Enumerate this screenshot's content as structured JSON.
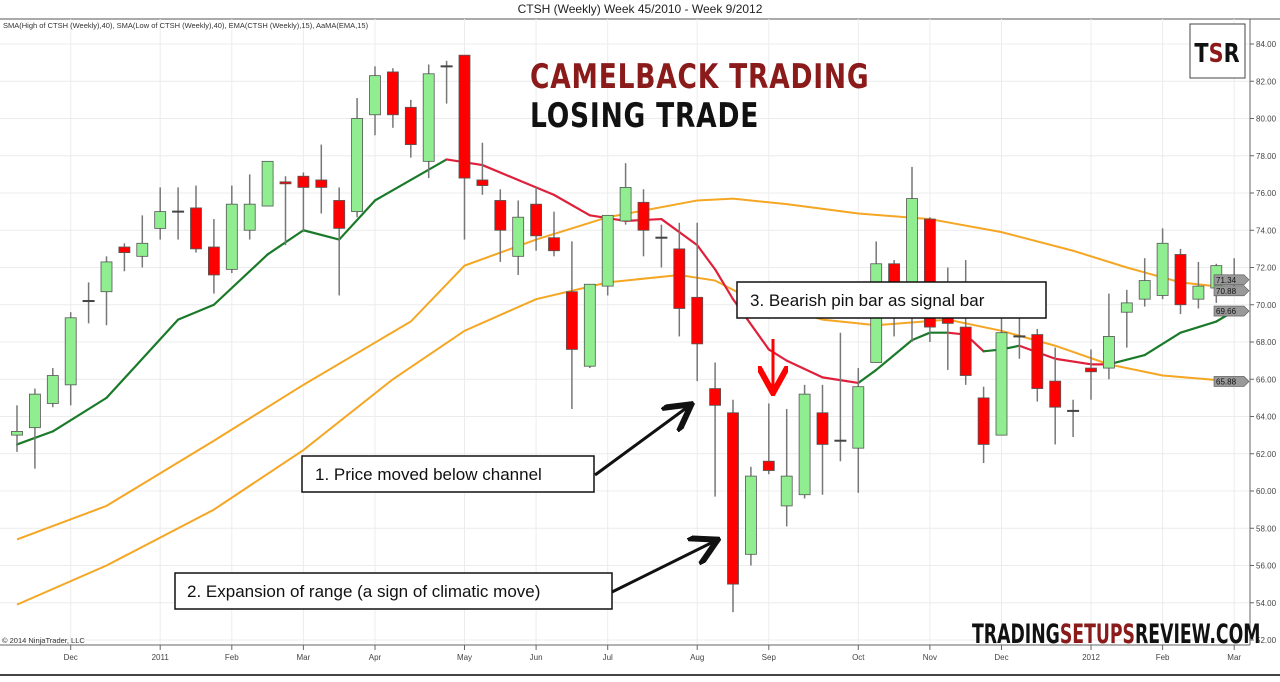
{
  "header": {
    "title": "CTSH (Weekly)  Week 45/2010 - Week 9/2012",
    "indicators": "SMA(High of CTSH (Weekly),40), SMA(Low of CTSH (Weekly),40), EMA(CTSH (Weekly),15), AaMA(EMA,15)"
  },
  "overlay": {
    "title_line1": "CAMELBACK TRADING",
    "title_line2": "LOSING TRADE",
    "logo": {
      "T": "T",
      "S": "S",
      "R": "R"
    },
    "watermark": {
      "part1": "TRADING",
      "part2": "SETUPS",
      "part3": "REVIEW.COM"
    },
    "copyright": "© 2014 NinjaTrader, LLC",
    "callouts": [
      "1. Price moved below channel",
      "2. Expansion of range (a sign of climatic move)",
      "3. Bearish pin bar as signal bar"
    ]
  },
  "colors": {
    "up": "#90ee90",
    "down": "#ff0000",
    "sma": "#f5a623",
    "ema_up": "#1a7a2a",
    "ema_down": "#e0203a",
    "title_red": "#8b1a1a"
  },
  "chart_data": {
    "type": "candlestick",
    "title": "CTSH (Weekly)  Week 45/2010 - Week 9/2012",
    "ylim": [
      52,
      84.8
    ],
    "yticks": [
      "52.00",
      "54.00",
      "56.00",
      "58.00",
      "60.00",
      "62.00",
      "64.00",
      "66.00",
      "68.00",
      "70.00",
      "72.00",
      "74.00",
      "76.00",
      "78.00",
      "80.00",
      "82.00",
      "84.00"
    ],
    "xticks": [
      {
        "label": "Dec",
        "week": 3
      },
      {
        "label": "2011",
        "week": 8
      },
      {
        "label": "Feb",
        "week": 12
      },
      {
        "label": "Mar",
        "week": 16
      },
      {
        "label": "Apr",
        "week": 20
      },
      {
        "label": "May",
        "week": 25
      },
      {
        "label": "Jun",
        "week": 29
      },
      {
        "label": "Jul",
        "week": 33
      },
      {
        "label": "Aug",
        "week": 38
      },
      {
        "label": "Sep",
        "week": 42
      },
      {
        "label": "Oct",
        "week": 47
      },
      {
        "label": "Nov",
        "week": 51
      },
      {
        "label": "Dec",
        "week": 55
      },
      {
        "label": "2012",
        "week": 60
      },
      {
        "label": "Feb",
        "week": 64
      },
      {
        "label": "Mar",
        "week": 68
      }
    ],
    "grid": true,
    "ohlc": [
      [
        63.0,
        64.6,
        62.1,
        63.2
      ],
      [
        63.4,
        65.5,
        61.2,
        65.2
      ],
      [
        64.7,
        66.6,
        64.5,
        66.2
      ],
      [
        65.7,
        69.6,
        64.6,
        69.3
      ],
      [
        70.2,
        71.2,
        69.0,
        70.2
      ],
      [
        70.7,
        72.6,
        68.9,
        72.3
      ],
      [
        73.1,
        73.3,
        71.8,
        72.8
      ],
      [
        72.6,
        74.8,
        72.0,
        73.3
      ],
      [
        74.1,
        76.3,
        73.5,
        75.0
      ],
      [
        75.0,
        76.3,
        73.5,
        75.0
      ],
      [
        75.2,
        76.4,
        72.8,
        73.0
      ],
      [
        73.1,
        74.6,
        70.6,
        71.6
      ],
      [
        71.9,
        76.4,
        71.7,
        75.4
      ],
      [
        74.0,
        77.0,
        73.5,
        75.4
      ],
      [
        75.3,
        77.7,
        75.3,
        77.7
      ],
      [
        76.6,
        76.9,
        73.2,
        76.5
      ],
      [
        76.9,
        77.1,
        73.9,
        76.3
      ],
      [
        76.7,
        78.6,
        74.9,
        76.3
      ],
      [
        75.6,
        76.3,
        70.5,
        74.1
      ],
      [
        75.0,
        81.1,
        74.7,
        80.0
      ],
      [
        80.2,
        82.8,
        79.1,
        82.3
      ],
      [
        82.5,
        82.7,
        79.5,
        80.2
      ],
      [
        80.6,
        81.0,
        77.9,
        78.6
      ],
      [
        77.7,
        82.9,
        76.8,
        82.4
      ],
      [
        82.8,
        83.1,
        80.8,
        82.8
      ],
      [
        83.4,
        83.4,
        73.5,
        76.8
      ],
      [
        76.7,
        78.7,
        75.9,
        76.4
      ],
      [
        75.6,
        76.2,
        72.3,
        74.0
      ],
      [
        72.6,
        75.6,
        71.6,
        74.7
      ],
      [
        75.4,
        76.3,
        72.9,
        73.7
      ],
      [
        73.6,
        75.0,
        72.6,
        72.9
      ],
      [
        70.7,
        73.4,
        64.4,
        67.6
      ],
      [
        66.7,
        71.1,
        66.6,
        71.1
      ],
      [
        71.0,
        74.8,
        70.5,
        74.8
      ],
      [
        74.5,
        77.6,
        74.3,
        76.3
      ],
      [
        75.5,
        76.2,
        72.6,
        74.0
      ],
      [
        73.6,
        74.3,
        72.0,
        73.6
      ],
      [
        73.0,
        74.4,
        68.3,
        69.8
      ],
      [
        70.4,
        74.4,
        65.9,
        67.9
      ],
      [
        65.5,
        66.9,
        59.7,
        64.6
      ],
      [
        64.2,
        64.9,
        53.5,
        55.0
      ],
      [
        56.6,
        61.3,
        56.0,
        60.8
      ],
      [
        61.6,
        64.7,
        60.9,
        61.1
      ],
      [
        59.2,
        64.4,
        58.1,
        60.8
      ],
      [
        59.8,
        65.7,
        59.6,
        65.2
      ],
      [
        64.2,
        65.7,
        59.8,
        62.5
      ],
      [
        62.7,
        68.5,
        61.6,
        62.7
      ],
      [
        62.3,
        66.6,
        59.9,
        65.6
      ],
      [
        66.9,
        73.4,
        66.9,
        72.2
      ],
      [
        72.2,
        72.4,
        68.3,
        70.0
      ],
      [
        70.0,
        77.4,
        68.0,
        75.7
      ],
      [
        74.6,
        74.7,
        68.0,
        68.8
      ],
      [
        69.5,
        72.0,
        66.5,
        69.0
      ],
      [
        68.8,
        72.4,
        65.7,
        66.2
      ],
      [
        65.0,
        65.6,
        61.5,
        62.5
      ],
      [
        63.0,
        69.3,
        63.0,
        68.5
      ],
      [
        68.3,
        69.3,
        67.1,
        68.3
      ],
      [
        68.4,
        68.7,
        64.8,
        65.5
      ],
      [
        65.9,
        67.7,
        62.5,
        64.5
      ],
      [
        64.3,
        64.9,
        62.9,
        64.3
      ],
      [
        66.6,
        67.6,
        64.9,
        66.4
      ],
      [
        66.6,
        70.6,
        66.0,
        68.3
      ],
      [
        69.6,
        70.8,
        67.7,
        70.1
      ],
      [
        70.3,
        72.5,
        69.9,
        71.3
      ],
      [
        70.5,
        74.1,
        70.3,
        73.3
      ],
      [
        72.7,
        73.0,
        69.5,
        70.0
      ],
      [
        70.3,
        72.3,
        69.8,
        71.0
      ],
      [
        70.9,
        72.2,
        70.1,
        72.1
      ],
      [
        71.6,
        72.5,
        70.8,
        71.34
      ]
    ],
    "sma_high_40": [
      [
        0,
        57.4
      ],
      [
        5,
        59.2
      ],
      [
        11,
        62.7
      ],
      [
        16,
        65.7
      ],
      [
        22,
        69.1
      ],
      [
        25,
        72.1
      ],
      [
        29,
        73.5
      ],
      [
        33,
        74.7
      ],
      [
        38,
        75.6
      ],
      [
        40,
        75.7
      ],
      [
        43,
        75.4
      ],
      [
        47,
        74.9
      ],
      [
        51,
        74.6
      ],
      [
        55,
        73.9
      ],
      [
        59,
        72.9
      ],
      [
        62,
        72.0
      ],
      [
        65,
        71.2
      ],
      [
        68,
        70.88
      ]
    ],
    "sma_low_40": [
      [
        0,
        53.9
      ],
      [
        5,
        56.0
      ],
      [
        11,
        59.0
      ],
      [
        16,
        62.2
      ],
      [
        21,
        66.0
      ],
      [
        25,
        68.6
      ],
      [
        29,
        70.3
      ],
      [
        33,
        71.2
      ],
      [
        37,
        71.6
      ],
      [
        39,
        71.3
      ],
      [
        41,
        70.3
      ],
      [
        45,
        69.2
      ],
      [
        48,
        68.9
      ],
      [
        52,
        69.2
      ],
      [
        55,
        68.6
      ],
      [
        58,
        67.8
      ],
      [
        61,
        66.8
      ],
      [
        64,
        66.2
      ],
      [
        68,
        65.88
      ]
    ],
    "ema_15": [
      [
        0,
        62.5,
        "up"
      ],
      [
        2,
        63.2,
        "up"
      ],
      [
        5,
        65.0,
        "up"
      ],
      [
        9,
        69.2,
        "up"
      ],
      [
        11,
        70.0,
        "up"
      ],
      [
        14,
        72.7,
        "up"
      ],
      [
        16,
        74.0,
        "up"
      ],
      [
        18,
        73.5,
        "up"
      ],
      [
        20,
        75.6,
        "up"
      ],
      [
        22,
        76.7,
        "up"
      ],
      [
        24,
        77.8,
        "up"
      ],
      [
        26,
        77.5,
        "down"
      ],
      [
        28,
        76.7,
        "down"
      ],
      [
        30,
        75.9,
        "down"
      ],
      [
        32,
        74.8,
        "down"
      ],
      [
        34,
        74.5,
        "down"
      ],
      [
        36,
        74.6,
        "down"
      ],
      [
        38,
        73.2,
        "down"
      ],
      [
        39,
        71.9,
        "down"
      ],
      [
        40,
        70.3,
        "down"
      ],
      [
        42,
        67.6,
        "down"
      ],
      [
        43,
        67.0,
        "down"
      ],
      [
        45,
        66.1,
        "down"
      ],
      [
        47,
        65.8,
        "down"
      ],
      [
        48,
        66.5,
        "up"
      ],
      [
        50,
        68.1,
        "up"
      ],
      [
        51,
        68.5,
        "up"
      ],
      [
        52,
        68.5,
        "up"
      ],
      [
        53,
        68.4,
        "down"
      ],
      [
        54,
        67.5,
        "down"
      ],
      [
        55,
        67.6,
        "up"
      ],
      [
        56,
        67.8,
        "up"
      ],
      [
        58,
        67.1,
        "down"
      ],
      [
        60,
        66.8,
        "down"
      ],
      [
        61,
        66.8,
        "down"
      ],
      [
        63,
        67.3,
        "up"
      ],
      [
        65,
        68.5,
        "up"
      ],
      [
        67,
        69.1,
        "up"
      ],
      [
        68,
        69.66,
        "up"
      ]
    ],
    "price_tags": [
      "71.34",
      "70.88",
      "69.66",
      "65.88"
    ]
  }
}
